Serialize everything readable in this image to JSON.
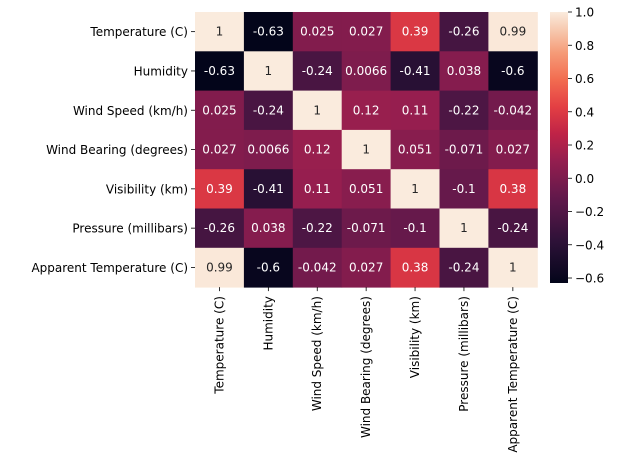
{
  "chart_data": {
    "type": "heatmap",
    "title": "",
    "xlabel": "",
    "ylabel": "",
    "labels": [
      "Temperature (C)",
      "Humidity",
      "Wind Speed (km/h)",
      "Wind Bearing (degrees)",
      "Visibility (km)",
      "Pressure (millibars)",
      "Apparent Temperature (C)"
    ],
    "values": [
      [
        1,
        -0.63,
        0.025,
        0.027,
        0.39,
        -0.26,
        0.99
      ],
      [
        -0.63,
        1,
        -0.24,
        0.0066,
        -0.41,
        0.038,
        -0.6
      ],
      [
        0.025,
        -0.24,
        1,
        0.12,
        0.11,
        -0.22,
        -0.042
      ],
      [
        0.027,
        0.0066,
        0.12,
        1,
        0.051,
        -0.071,
        0.027
      ],
      [
        0.39,
        -0.41,
        0.11,
        0.051,
        1,
        -0.1,
        0.38
      ],
      [
        -0.26,
        0.038,
        -0.22,
        -0.071,
        -0.1,
        1,
        -0.24
      ],
      [
        0.99,
        -0.6,
        -0.042,
        0.027,
        0.38,
        -0.24,
        1
      ]
    ],
    "value_labels": [
      [
        "1",
        "-0.63",
        "0.025",
        "0.027",
        "0.39",
        "-0.26",
        "0.99"
      ],
      [
        "-0.63",
        "1",
        "-0.24",
        "0.0066",
        "-0.41",
        "0.038",
        "-0.6"
      ],
      [
        "0.025",
        "-0.24",
        "1",
        "0.12",
        "0.11",
        "-0.22",
        "-0.042"
      ],
      [
        "0.027",
        "0.0066",
        "0.12",
        "1",
        "0.051",
        "-0.071",
        "0.027"
      ],
      [
        "0.39",
        "-0.41",
        "0.11",
        "0.051",
        "1",
        "-0.1",
        "0.38"
      ],
      [
        "-0.26",
        "0.038",
        "-0.22",
        "-0.071",
        "-0.1",
        "1",
        "-0.24"
      ],
      [
        "0.99",
        "-0.6",
        "-0.042",
        "0.027",
        "0.38",
        "-0.24",
        "1"
      ]
    ],
    "colorbar": {
      "range": [
        -0.63,
        1.0
      ],
      "ticks": [
        -0.6,
        -0.4,
        -0.2,
        0.0,
        0.2,
        0.4,
        0.6,
        0.8,
        1.0
      ],
      "tick_labels": [
        "−0.6",
        "−0.4",
        "−0.2",
        "0.0",
        "0.2",
        "0.4",
        "0.6",
        "0.8",
        "1.0"
      ],
      "colormap": "rocket",
      "placement": "right"
    },
    "grid": false
  }
}
